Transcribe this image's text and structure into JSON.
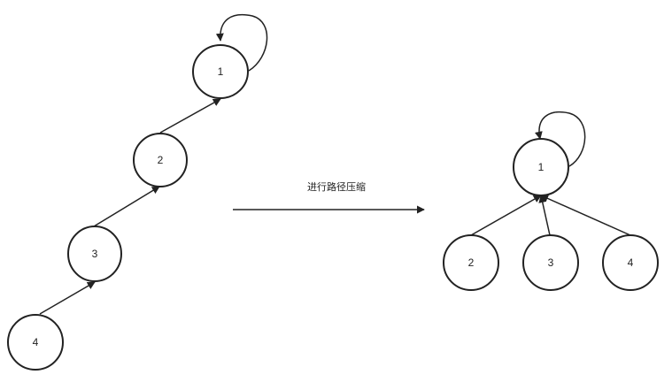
{
  "colors": {
    "stroke": "#222222",
    "background": "#ffffff"
  },
  "before": {
    "nodes": [
      "1",
      "2",
      "3",
      "4"
    ]
  },
  "transition": {
    "label": "进行路径压缩"
  },
  "after": {
    "root": "1",
    "children": [
      "2",
      "3",
      "4"
    ]
  }
}
